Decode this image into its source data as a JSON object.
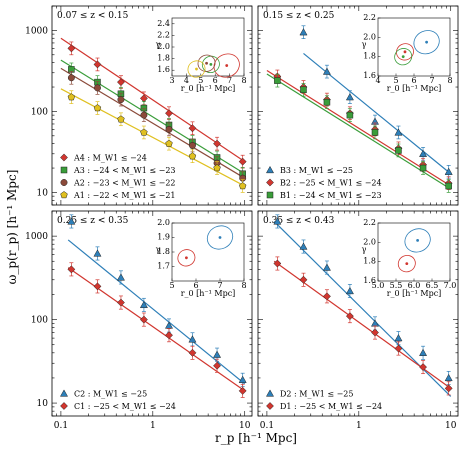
{
  "figure": {
    "ylabel": "ω_p(r_p) [h⁻¹ Mpc]",
    "xlabel": "r_p [h⁻¹ Mpc]"
  },
  "chart_data": [
    {
      "type": "scatter",
      "panel": "top-left",
      "title": "0.07 ≤ z < 0.15",
      "xscale": "log",
      "yscale": "log",
      "xlim": [
        0.08,
        12
      ],
      "ylim": [
        7,
        2000
      ],
      "xticks": [
        "0.1",
        "1",
        "10"
      ],
      "yticks": [
        "10",
        "100",
        "1000"
      ],
      "legend_position": "bottom-left",
      "series": [
        {
          "name": "A4 : M_W1 ≤ −24",
          "marker": "diamond",
          "color": "#d1362f",
          "x": [
            0.13,
            0.25,
            0.45,
            0.8,
            1.5,
            2.7,
            5,
            9.5
          ],
          "y": [
            600,
            380,
            230,
            145,
            95,
            62,
            40,
            24
          ],
          "fit": [
            [
              0.1,
              800
            ],
            [
              10,
              24
            ]
          ]
        },
        {
          "name": "A3 : −24 < M_W1 ≤ −23",
          "marker": "square",
          "color": "#3a9d3a",
          "x": [
            0.13,
            0.25,
            0.45,
            0.8,
            1.5,
            2.7,
            5,
            9.5
          ],
          "y": [
            330,
            230,
            165,
            110,
            68,
            42,
            27,
            17
          ],
          "fit": [
            [
              0.1,
              430
            ],
            [
              10,
              17
            ]
          ]
        },
        {
          "name": "A2 : −23 < M_W1 ≤ −22",
          "marker": "circle",
          "color": "#8b4a3a",
          "x": [
            0.13,
            0.25,
            0.45,
            0.8,
            1.5,
            2.7,
            5,
            9.5
          ],
          "y": [
            260,
            195,
            140,
            90,
            60,
            38,
            23,
            15
          ],
          "fit": [
            [
              0.1,
              340
            ],
            [
              10,
              15
            ]
          ]
        },
        {
          "name": "A1 : −22 < M_W1 ≤ −21",
          "marker": "pentagon",
          "color": "#e0c020",
          "x": [
            0.13,
            0.25,
            0.45,
            0.8,
            1.5,
            2.7,
            5,
            9.5
          ],
          "y": [
            150,
            110,
            80,
            55,
            40,
            28,
            20,
            12
          ],
          "fit": [
            [
              0.1,
              190
            ],
            [
              10,
              12
            ]
          ]
        }
      ],
      "inset": {
        "xlabel": "r_0 [h⁻¹ Mpc]",
        "ylabel": "γ",
        "xlim": [
          3,
          8
        ],
        "ylim": [
          1.5,
          2.5
        ],
        "xticks": [
          "3",
          "4",
          "5",
          "6",
          "7",
          "8"
        ],
        "yticks": [
          "1.6",
          "1.8",
          "2.0",
          "2.2",
          "2.4"
        ],
        "points": [
          {
            "label": "A4",
            "color": "#d1362f",
            "r0": 6.8,
            "gamma": 1.68
          },
          {
            "label": "A3",
            "color": "#3a9d3a",
            "r0": 5.7,
            "gamma": 1.7
          },
          {
            "label": "A2",
            "color": "#8b4a3a",
            "r0": 5.4,
            "gamma": 1.72
          },
          {
            "label": "A1",
            "color": "#e0c020",
            "r0": 4.7,
            "gamma": 1.62
          }
        ]
      }
    },
    {
      "type": "scatter",
      "panel": "top-right",
      "title": "0.15 ≤ z < 0.25",
      "xscale": "log",
      "yscale": "log",
      "xlim": [
        0.08,
        12
      ],
      "ylim": [
        7,
        2000
      ],
      "xticks": [
        "0.1",
        "1",
        "10"
      ],
      "legend_position": "bottom-left",
      "series": [
        {
          "name": "B3 : M_W1 ≤ −25",
          "marker": "triangle",
          "color": "#2e7fb8",
          "x": [
            0.25,
            0.45,
            0.8,
            1.5,
            2.7,
            5,
            9.5
          ],
          "y": [
            950,
            310,
            150,
            75,
            55,
            30,
            18
          ],
          "fit": [
            [
              0.25,
              520
            ],
            [
              10,
              17
            ]
          ]
        },
        {
          "name": "B2 : −25 < M_W1 ≤ −24",
          "marker": "diamond",
          "color": "#d1362f",
          "x": [
            0.13,
            0.25,
            0.45,
            0.8,
            1.5,
            2.7,
            5,
            9.5
          ],
          "y": [
            270,
            200,
            140,
            95,
            60,
            35,
            22,
            13
          ],
          "fit": [
            [
              0.1,
              320
            ],
            [
              10,
              12
            ]
          ]
        },
        {
          "name": "B1 : −24 < M_W1 ≤ −23",
          "marker": "square",
          "color": "#3a9d3a",
          "x": [
            0.13,
            0.25,
            0.45,
            0.8,
            1.5,
            2.7,
            5,
            9.5
          ],
          "y": [
            240,
            185,
            130,
            90,
            55,
            33,
            20,
            12
          ],
          "fit": [
            [
              0.1,
              290
            ],
            [
              10,
              11
            ]
          ]
        }
      ],
      "inset": {
        "xlabel": "r_0 [h⁻¹ Mpc]",
        "ylabel": "γ",
        "xlim": [
          4,
          8
        ],
        "ylim": [
          1.6,
          2.2
        ],
        "xticks": [
          "4",
          "5",
          "6",
          "7",
          "8"
        ],
        "yticks": [
          "1.6",
          "1.8",
          "2.0",
          "2.2"
        ],
        "points": [
          {
            "label": "B3",
            "color": "#2e7fb8",
            "r0": 6.7,
            "gamma": 1.95
          },
          {
            "label": "B2",
            "color": "#d1362f",
            "r0": 5.5,
            "gamma": 1.85
          },
          {
            "label": "B1",
            "color": "#3a9d3a",
            "r0": 5.4,
            "gamma": 1.8
          }
        ]
      }
    },
    {
      "type": "scatter",
      "panel": "bottom-left",
      "title": "0.25 ≤ z < 0.35",
      "xscale": "log",
      "yscale": "log",
      "xlim": [
        0.08,
        12
      ],
      "ylim": [
        7,
        2000
      ],
      "xticks": [
        "0.1",
        "1",
        "10"
      ],
      "yticks": [
        "10",
        "100",
        "1000"
      ],
      "legend_position": "bottom-left",
      "series": [
        {
          "name": "C2 : M_W1 ≤ −25",
          "marker": "triangle",
          "color": "#2e7fb8",
          "x": [
            0.13,
            0.25,
            0.45,
            0.8,
            1.5,
            2.7,
            5,
            9.5
          ],
          "y": [
            1500,
            620,
            320,
            150,
            85,
            58,
            38,
            19
          ],
          "fit": [
            [
              0.12,
              900
            ],
            [
              10,
              17
            ]
          ]
        },
        {
          "name": "C1 : −25 < M_W1 ≤ −24",
          "marker": "diamond",
          "color": "#d1362f",
          "x": [
            0.13,
            0.25,
            0.45,
            0.8,
            1.5,
            2.7,
            5,
            9.5
          ],
          "y": [
            400,
            250,
            160,
            100,
            65,
            40,
            28,
            14
          ],
          "fit": [
            [
              0.12,
              420
            ],
            [
              10,
              14
            ]
          ]
        }
      ],
      "inset": {
        "xlabel": "r_0 [h⁻¹ Mpc]",
        "ylabel": "γ",
        "xlim": [
          5,
          8
        ],
        "ylim": [
          1.6,
          2.0
        ],
        "xticks": [
          "5",
          "6",
          "7",
          "8"
        ],
        "yticks": [
          "1.7",
          "1.8",
          "1.9",
          "2.0"
        ],
        "points": [
          {
            "label": "C2",
            "color": "#2e7fb8",
            "r0": 7.0,
            "gamma": 1.9
          },
          {
            "label": "C1",
            "color": "#d1362f",
            "r0": 5.6,
            "gamma": 1.76
          }
        ]
      }
    },
    {
      "type": "scatter",
      "panel": "bottom-right",
      "title": "0.35 ≤ z < 0.43",
      "xscale": "log",
      "yscale": "log",
      "xlim": [
        0.08,
        12
      ],
      "ylim": [
        7,
        2000
      ],
      "xticks": [
        "0.1",
        "1",
        "10"
      ],
      "legend_position": "bottom-left",
      "series": [
        {
          "name": "D2 : M_W1 ≤ −25",
          "marker": "triangle",
          "color": "#2e7fb8",
          "x": [
            0.13,
            0.25,
            0.45,
            0.8,
            1.5,
            2.7,
            5,
            9.5
          ],
          "y": [
            1500,
            750,
            420,
            220,
            90,
            60,
            40,
            20
          ],
          "fit": [
            [
              0.12,
              1500
            ],
            [
              10,
              12
            ]
          ]
        },
        {
          "name": "D1 : −25 < M_W1 ≤ −24",
          "marker": "diamond",
          "color": "#d1362f",
          "x": [
            0.13,
            0.25,
            0.45,
            0.8,
            1.5,
            2.7,
            5,
            9.5
          ],
          "y": [
            470,
            300,
            190,
            110,
            70,
            45,
            27,
            15
          ],
          "fit": [
            [
              0.12,
              500
            ],
            [
              10,
              15
            ]
          ]
        }
      ],
      "inset": {
        "xlabel": "r_0 [h⁻¹ Mpc]",
        "ylabel": "γ",
        "xlim": [
          5,
          7
        ],
        "ylim": [
          1.6,
          2.2
        ],
        "xticks": [
          "5.0",
          "5.5",
          "6.0",
          "6.5",
          "7.0"
        ],
        "yticks": [
          "1.6",
          "1.8",
          "2.0",
          "2.2"
        ],
        "points": [
          {
            "label": "D2",
            "color": "#2e7fb8",
            "r0": 6.1,
            "gamma": 2.02
          },
          {
            "label": "D1",
            "color": "#d1362f",
            "r0": 5.8,
            "gamma": 1.78
          }
        ]
      }
    }
  ]
}
